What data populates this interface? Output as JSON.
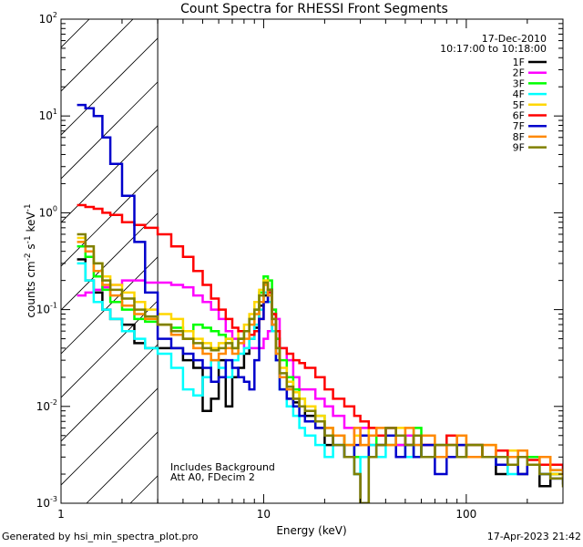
{
  "chart_data": {
    "type": "line",
    "title": "Count Spectra for RHESSI Front Segments",
    "xlabel": "Energy (keV)",
    "ylabel_parts": {
      "base": "counts cm",
      "exp1": "-2",
      "mid": " s",
      "exp2": "-1",
      "mid2": " keV",
      "exp3": "-1"
    },
    "xscale": "log",
    "yscale": "log",
    "xlim": [
      1,
      300
    ],
    "ylim": [
      0.001,
      100
    ],
    "x_ticks": [
      {
        "v": 1,
        "label": "1"
      },
      {
        "v": 10,
        "label": "10"
      },
      {
        "v": 100,
        "label": "100"
      }
    ],
    "y_ticks": [
      {
        "v": 0.001,
        "base": "10",
        "exp": "-3"
      },
      {
        "v": 0.01,
        "base": "10",
        "exp": "-2"
      },
      {
        "v": 0.1,
        "base": "10",
        "exp": "-1"
      },
      {
        "v": 1,
        "base": "10",
        "exp": "0"
      },
      {
        "v": 10,
        "base": "10",
        "exp": "1"
      },
      {
        "v": 100,
        "base": "10",
        "exp": "2"
      }
    ],
    "date": "17-Dec-2010",
    "time_range": "10:17:00 to 10:18:00",
    "annotation_lines": [
      "Includes Background",
      "Att A0, FDecim 2"
    ],
    "shaded_region": {
      "x_from": 1,
      "x_to": 3
    },
    "series": [
      {
        "name": "1F",
        "color": "#000000",
        "x": [
          1.2,
          1.32,
          1.45,
          1.6,
          1.75,
          2,
          2.3,
          2.6,
          3,
          3.5,
          4,
          4.5,
          5,
          5.5,
          6,
          6.5,
          7,
          7.5,
          8,
          8.5,
          9,
          9.5,
          10,
          10.5,
          11,
          11.5,
          12,
          13,
          14,
          15,
          16,
          18,
          20,
          22,
          25,
          28,
          30,
          33,
          36,
          40,
          45,
          50,
          55,
          60,
          70,
          80,
          90,
          100,
          120,
          140,
          160,
          180,
          200,
          230,
          260,
          300
        ],
        "y": [
          0.33,
          0.2,
          0.15,
          0.1,
          0.08,
          0.07,
          0.045,
          0.04,
          0.04,
          0.04,
          0.03,
          0.025,
          0.009,
          0.012,
          0.03,
          0.01,
          0.02,
          0.025,
          0.035,
          0.05,
          0.065,
          0.11,
          0.14,
          0.16,
          0.09,
          0.05,
          0.02,
          0.012,
          0.011,
          0.01,
          0.008,
          0.006,
          0.004,
          0.005,
          0.003,
          0.002,
          0.001,
          0.003,
          0.004,
          0.006,
          0.004,
          0.005,
          0.003,
          0.004,
          0.003,
          0.004,
          0.003,
          0.004,
          0.003,
          0.002,
          0.0025,
          0.002,
          0.0025,
          0.0015,
          0.002,
          0.0018
        ]
      },
      {
        "name": "2F",
        "color": "#ff00ff",
        "x": [
          1.2,
          1.32,
          1.45,
          1.6,
          1.75,
          2,
          2.3,
          2.6,
          3,
          3.5,
          4,
          4.5,
          5,
          5.5,
          6,
          6.5,
          7,
          7.5,
          8,
          8.5,
          9,
          9.5,
          10,
          10.5,
          11,
          11.5,
          12,
          13,
          14,
          15,
          16,
          18,
          20,
          22,
          25,
          28,
          30,
          33,
          36,
          40,
          45,
          50,
          55,
          60,
          70,
          80,
          90,
          100,
          120,
          140,
          160,
          180,
          200,
          230,
          260,
          300
        ],
        "y": [
          0.14,
          0.15,
          0.16,
          0.17,
          0.18,
          0.2,
          0.2,
          0.19,
          0.19,
          0.18,
          0.17,
          0.14,
          0.12,
          0.1,
          0.08,
          0.06,
          0.05,
          0.05,
          0.04,
          0.04,
          0.04,
          0.04,
          0.05,
          0.06,
          0.1,
          0.08,
          0.04,
          0.03,
          0.02,
          0.015,
          0.015,
          0.012,
          0.01,
          0.008,
          0.006,
          0.005,
          0.006,
          0.004,
          0.005,
          0.006,
          0.004,
          0.005,
          0.004,
          0.004,
          0.003,
          0.004,
          0.003,
          0.004,
          0.003,
          0.0035,
          0.003,
          0.003,
          0.0025,
          0.003,
          0.0025,
          0.002
        ]
      },
      {
        "name": "3F",
        "color": "#00ff00",
        "x": [
          1.2,
          1.32,
          1.45,
          1.6,
          1.75,
          2,
          2.3,
          2.6,
          3,
          3.5,
          4,
          4.5,
          5,
          5.5,
          6,
          6.5,
          7,
          7.5,
          8,
          8.5,
          9,
          9.5,
          10,
          10.5,
          11,
          11.5,
          12,
          13,
          14,
          15,
          16,
          18,
          20,
          22,
          25,
          28,
          30,
          33,
          36,
          40,
          45,
          50,
          55,
          60,
          70,
          80,
          90,
          100,
          120,
          140,
          160,
          180,
          200,
          230,
          260,
          300
        ],
        "y": [
          0.45,
          0.35,
          0.22,
          0.16,
          0.12,
          0.1,
          0.08,
          0.075,
          0.07,
          0.065,
          0.06,
          0.07,
          0.065,
          0.06,
          0.055,
          0.05,
          0.04,
          0.05,
          0.06,
          0.08,
          0.1,
          0.15,
          0.22,
          0.2,
          0.1,
          0.05,
          0.03,
          0.02,
          0.015,
          0.012,
          0.01,
          0.008,
          0.006,
          0.005,
          0.004,
          0.003,
          0.003,
          0.004,
          0.005,
          0.004,
          0.005,
          0.004,
          0.006,
          0.003,
          0.004,
          0.005,
          0.003,
          0.004,
          0.003,
          0.003,
          0.0035,
          0.003,
          0.003,
          0.0025,
          0.002,
          0.002
        ]
      },
      {
        "name": "4F",
        "color": "#00ffff",
        "x": [
          1.2,
          1.32,
          1.45,
          1.6,
          1.75,
          2,
          2.3,
          2.6,
          3,
          3.5,
          4,
          4.5,
          5,
          5.5,
          6,
          6.5,
          7,
          7.5,
          8,
          8.5,
          9,
          9.5,
          10,
          10.5,
          11,
          11.5,
          12,
          13,
          14,
          15,
          16,
          18,
          20,
          22,
          25,
          28,
          30,
          33,
          36,
          40,
          45,
          50,
          55,
          60,
          70,
          80,
          90,
          100,
          120,
          140,
          160,
          180,
          200,
          230,
          260,
          300
        ],
        "y": [
          0.3,
          0.2,
          0.12,
          0.1,
          0.08,
          0.06,
          0.05,
          0.04,
          0.035,
          0.025,
          0.015,
          0.013,
          0.02,
          0.03,
          0.025,
          0.02,
          0.03,
          0.035,
          0.04,
          0.05,
          0.07,
          0.1,
          0.15,
          0.12,
          0.06,
          0.03,
          0.015,
          0.01,
          0.008,
          0.006,
          0.005,
          0.004,
          0.003,
          0.004,
          0.003,
          0.002,
          0.003,
          0.004,
          0.003,
          0.004,
          0.005,
          0.003,
          0.004,
          0.003,
          0.004,
          0.003,
          0.004,
          0.003,
          0.003,
          0.0025,
          0.002,
          0.003,
          0.0025,
          0.002,
          0.0022,
          0.002
        ]
      },
      {
        "name": "5F",
        "color": "#ffd700",
        "x": [
          1.2,
          1.32,
          1.45,
          1.6,
          1.75,
          2,
          2.3,
          2.6,
          3,
          3.5,
          4,
          4.5,
          5,
          5.5,
          6,
          6.5,
          7,
          7.5,
          8,
          8.5,
          9,
          9.5,
          10,
          10.5,
          11,
          11.5,
          12,
          13,
          14,
          15,
          16,
          18,
          20,
          22,
          25,
          28,
          30,
          33,
          36,
          40,
          45,
          50,
          55,
          60,
          70,
          80,
          90,
          100,
          120,
          140,
          160,
          180,
          200,
          230,
          260,
          300
        ],
        "y": [
          0.55,
          0.45,
          0.3,
          0.22,
          0.18,
          0.15,
          0.12,
          0.1,
          0.09,
          0.08,
          0.06,
          0.05,
          0.045,
          0.04,
          0.045,
          0.05,
          0.04,
          0.06,
          0.07,
          0.09,
          0.12,
          0.16,
          0.2,
          0.15,
          0.08,
          0.04,
          0.025,
          0.018,
          0.014,
          0.012,
          0.01,
          0.008,
          0.006,
          0.005,
          0.004,
          0.005,
          0.004,
          0.006,
          0.005,
          0.004,
          0.006,
          0.004,
          0.005,
          0.004,
          0.003,
          0.004,
          0.005,
          0.003,
          0.004,
          0.003,
          0.0035,
          0.003,
          0.0025,
          0.003,
          0.002,
          0.0018
        ]
      },
      {
        "name": "6F",
        "color": "#ff0000",
        "x": [
          1.2,
          1.32,
          1.45,
          1.6,
          1.75,
          2,
          2.3,
          2.6,
          3,
          3.5,
          4,
          4.5,
          5,
          5.5,
          6,
          6.5,
          7,
          7.5,
          8,
          8.5,
          9,
          9.5,
          10,
          10.5,
          11,
          11.5,
          12,
          13,
          14,
          15,
          16,
          18,
          20,
          22,
          25,
          28,
          30,
          33,
          36,
          40,
          45,
          50,
          55,
          60,
          70,
          80,
          90,
          100,
          120,
          140,
          160,
          180,
          200,
          230,
          260,
          300
        ],
        "y": [
          1.2,
          1.15,
          1.1,
          1.0,
          0.95,
          0.8,
          0.75,
          0.7,
          0.6,
          0.45,
          0.35,
          0.25,
          0.18,
          0.13,
          0.1,
          0.08,
          0.065,
          0.06,
          0.06,
          0.055,
          0.06,
          0.08,
          0.12,
          0.15,
          0.09,
          0.06,
          0.04,
          0.035,
          0.03,
          0.028,
          0.025,
          0.02,
          0.015,
          0.012,
          0.01,
          0.008,
          0.007,
          0.006,
          0.005,
          0.006,
          0.005,
          0.004,
          0.005,
          0.004,
          0.004,
          0.005,
          0.004,
          0.004,
          0.003,
          0.0035,
          0.003,
          0.003,
          0.0028,
          0.0025,
          0.0025,
          0.0022
        ]
      },
      {
        "name": "7F",
        "color": "#0000cc",
        "x": [
          1.2,
          1.32,
          1.45,
          1.6,
          1.75,
          2,
          2.3,
          2.6,
          3,
          3.5,
          4,
          4.5,
          5,
          5.5,
          6,
          6.5,
          7,
          7.5,
          8,
          8.5,
          9,
          9.5,
          10,
          10.5,
          11,
          11.5,
          12,
          13,
          14,
          15,
          16,
          18,
          20,
          22,
          25,
          28,
          30,
          33,
          36,
          40,
          45,
          50,
          55,
          60,
          70,
          80,
          90,
          100,
          120,
          140,
          160,
          180,
          200,
          230,
          260,
          300
        ],
        "y": [
          13,
          12,
          10,
          6,
          3.2,
          1.5,
          0.5,
          0.15,
          0.05,
          0.04,
          0.035,
          0.03,
          0.025,
          0.018,
          0.02,
          0.03,
          0.025,
          0.02,
          0.018,
          0.015,
          0.03,
          0.08,
          0.12,
          0.16,
          0.07,
          0.03,
          0.015,
          0.012,
          0.01,
          0.008,
          0.007,
          0.006,
          0.005,
          0.004,
          0.003,
          0.004,
          0.005,
          0.003,
          0.004,
          0.005,
          0.003,
          0.004,
          0.003,
          0.004,
          0.002,
          0.003,
          0.004,
          0.003,
          0.003,
          0.0025,
          0.003,
          0.002,
          0.0025,
          0.002,
          0.0018,
          0.0016
        ]
      },
      {
        "name": "8F",
        "color": "#ff8800",
        "x": [
          1.2,
          1.32,
          1.45,
          1.6,
          1.75,
          2,
          2.3,
          2.6,
          3,
          3.5,
          4,
          4.5,
          5,
          5.5,
          6,
          6.5,
          7,
          7.5,
          8,
          8.5,
          9,
          9.5,
          10,
          10.5,
          11,
          11.5,
          12,
          13,
          14,
          15,
          16,
          18,
          20,
          22,
          25,
          28,
          30,
          33,
          36,
          40,
          45,
          50,
          55,
          60,
          70,
          80,
          90,
          100,
          120,
          140,
          160,
          180,
          200,
          230,
          260,
          300
        ],
        "y": [
          0.5,
          0.4,
          0.25,
          0.18,
          0.14,
          0.11,
          0.09,
          0.08,
          0.07,
          0.055,
          0.05,
          0.04,
          0.035,
          0.03,
          0.035,
          0.04,
          0.035,
          0.045,
          0.05,
          0.07,
          0.09,
          0.12,
          0.18,
          0.14,
          0.07,
          0.035,
          0.02,
          0.015,
          0.012,
          0.01,
          0.009,
          0.007,
          0.006,
          0.005,
          0.004,
          0.006,
          0.004,
          0.005,
          0.006,
          0.004,
          0.005,
          0.006,
          0.004,
          0.005,
          0.003,
          0.004,
          0.005,
          0.003,
          0.004,
          0.003,
          0.003,
          0.0035,
          0.0025,
          0.003,
          0.0022,
          0.002
        ]
      },
      {
        "name": "9F",
        "color": "#808000",
        "x": [
          1.2,
          1.32,
          1.45,
          1.6,
          1.75,
          2,
          2.3,
          2.6,
          3,
          3.5,
          4,
          4.5,
          5,
          5.5,
          6,
          6.5,
          7,
          7.5,
          8,
          8.5,
          9,
          9.5,
          10,
          10.5,
          11,
          11.5,
          12,
          13,
          14,
          15,
          16,
          18,
          20,
          22,
          25,
          28,
          30,
          33,
          36,
          40,
          45,
          50,
          55,
          60,
          70,
          80,
          90,
          100,
          120,
          140,
          160,
          180,
          200,
          230,
          260,
          300
        ],
        "y": [
          0.6,
          0.45,
          0.3,
          0.2,
          0.16,
          0.13,
          0.1,
          0.085,
          0.07,
          0.06,
          0.05,
          0.045,
          0.04,
          0.038,
          0.04,
          0.045,
          0.04,
          0.05,
          0.06,
          0.08,
          0.1,
          0.14,
          0.19,
          0.16,
          0.08,
          0.04,
          0.022,
          0.016,
          0.012,
          0.01,
          0.009,
          0.007,
          0.005,
          0.004,
          0.003,
          0.002,
          0.001,
          0.003,
          0.004,
          0.006,
          0.005,
          0.004,
          0.005,
          0.003,
          0.004,
          0.004,
          0.003,
          0.004,
          0.003,
          0.003,
          0.0025,
          0.003,
          0.0025,
          0.002,
          0.0018,
          0.0015
        ]
      }
    ]
  },
  "footer": {
    "generator": "Generated by hsi_min_spectra_plot.pro",
    "timestamp": "17-Apr-2023 21:42"
  }
}
